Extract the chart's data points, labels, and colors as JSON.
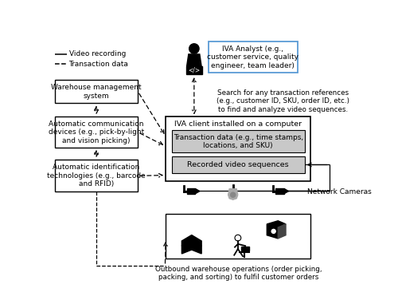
{
  "bg_color": "#ffffff",
  "legend_solid_label": "Video recording",
  "legend_dash_label": "Transaction data",
  "analyst_box_text": "IVA Analyst (e.g.,\ncustomer service, quality\nengineer, team leader)",
  "search_text": "Search for any transaction references\n(e.g., customer ID, SKU, order ID, etc.)\nto find and analyze video sequences.",
  "iva_client_title": "IVA client installed on a computer",
  "transaction_box_text": "Transaction data (e.g., time stamps,\nlocations, and SKU)",
  "video_box_text": "Recorded video sequences",
  "wms_text": "Warehouse management\nsystem",
  "acd_text": "Automatic communication\ndevices (e.g., pick-by-light\nand vision picking)",
  "ait_text": "Automatic identification\ntechnologies (e.g., barcode\nand RFID)",
  "network_cameras_label": "Network Cameras",
  "outbound_text": "Outbound warehouse operations (order picking,\npacking, and sorting) to fulfil customer orders",
  "gray_fill": "#c8c8c8",
  "analyst_box_edge": "#5b9bd5",
  "box_edge": "#000000",
  "text_color": "#000000"
}
